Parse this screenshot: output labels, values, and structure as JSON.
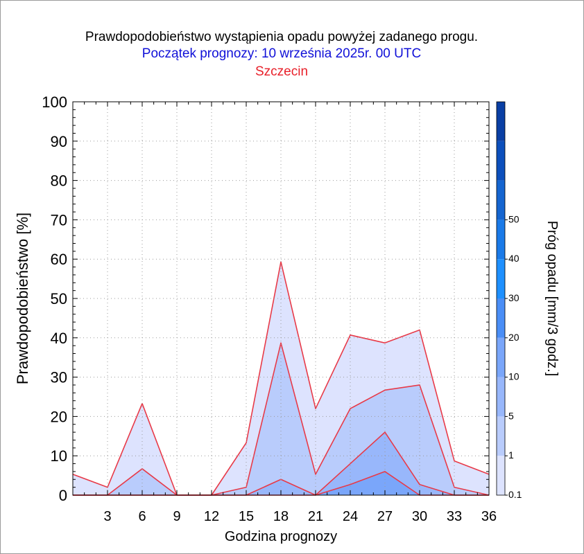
{
  "header": {
    "title": "Prawdopodobieństwo wystąpienia opadu powyżej zadanego progu.",
    "subtitle": "Początek prognozy: 10 września 2025r. 00 UTC",
    "location": "Szczecin"
  },
  "colors": {
    "title": "#000000",
    "subtitle": "#1010d8",
    "location": "#e8202a",
    "outline": "#e83a48"
  },
  "chart_data": {
    "type": "area",
    "xlabel": "Godzina prognozy",
    "ylabel": "Prawdopodobieństwo [%]",
    "colorbar_label": "Próg opadu [mm/3 godz.]",
    "xlim": [
      0,
      36
    ],
    "ylim": [
      0,
      100
    ],
    "x": [
      0,
      3,
      6,
      9,
      12,
      15,
      18,
      21,
      24,
      27,
      30,
      33,
      36
    ],
    "x_tick_labels": [
      "3",
      "6",
      "9",
      "12",
      "15",
      "18",
      "21",
      "24",
      "27",
      "30",
      "33",
      "36"
    ],
    "y_ticks": [
      0,
      10,
      20,
      30,
      40,
      50,
      60,
      70,
      80,
      90,
      100
    ],
    "grid": true,
    "series": [
      {
        "threshold": 0.1,
        "color": "#dde3fe",
        "values": [
          5.3,
          2.0,
          23.3,
          0,
          0,
          13.3,
          59.3,
          22.0,
          40.7,
          38.7,
          42.0,
          8.7,
          5.3
        ]
      },
      {
        "threshold": 1,
        "color": "#b9ccfc",
        "values": [
          0,
          0,
          6.7,
          0,
          0,
          2.0,
          38.7,
          5.3,
          22.0,
          26.7,
          28.0,
          2.0,
          0
        ]
      },
      {
        "threshold": 5,
        "color": "#98b7fb",
        "values": [
          0,
          0,
          0,
          0,
          0,
          0,
          4.0,
          0,
          8.0,
          16.0,
          2.7,
          0,
          0
        ]
      },
      {
        "threshold": 10,
        "color": "#7aa6fa",
        "values": [
          0,
          0,
          0,
          0,
          0,
          0,
          0,
          0,
          2.7,
          6.0,
          0,
          0,
          0
        ]
      }
    ],
    "colorbar": {
      "labels": [
        "0.1",
        "1",
        "5",
        "10",
        "20",
        "30",
        "40",
        "50"
      ],
      "colors": [
        "#dde3fe",
        "#b9ccfc",
        "#98b7fb",
        "#7aa6fa",
        "#4a8ef6",
        "#1e90ff",
        "#1a7ae8",
        "#1565d0",
        "#0c4fbc",
        "#0a3fa4"
      ]
    }
  }
}
